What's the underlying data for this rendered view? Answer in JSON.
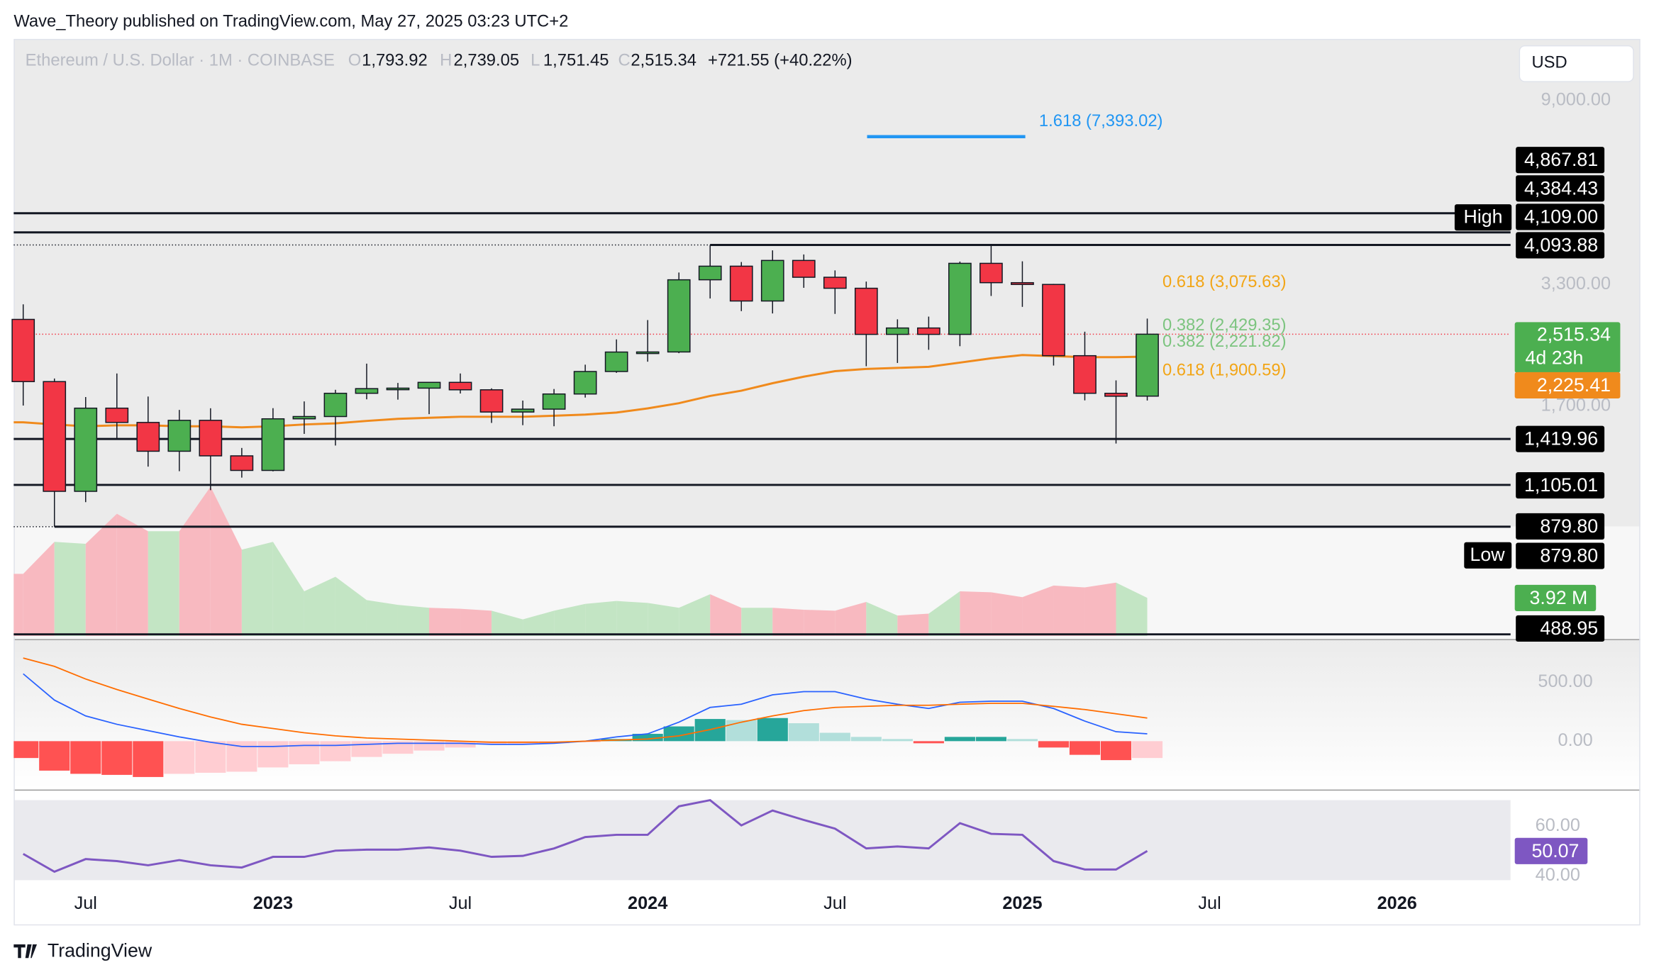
{
  "header": {
    "publisher": "Wave_Theory published on TradingView.com, May 27, 2025 03:23 UTC+2",
    "symbol": "Ethereum / U.S. Dollar · 1M · COINBASE",
    "o_key": "O",
    "open": "1,793.92",
    "h_key": "H",
    "high": "2,739.05",
    "l_key": "L",
    "low": "1,751.45",
    "c_key": "C",
    "close": "2,515.34",
    "change": "+721.55 (+40.22%)",
    "currency": "USD"
  },
  "footer": {
    "brand": "TradingView"
  },
  "chart_data": [
    {
      "type": "candlestick",
      "log_scale": true,
      "ylim": [
        482,
        12600
      ],
      "yticks": [
        {
          "value": 9000,
          "label": "9,000.00"
        },
        {
          "value": 3300,
          "label": "3,300.00"
        },
        {
          "value": 1700,
          "label": "1,700.00"
        }
      ],
      "xlim": [
        "2022-05",
        "2026-04"
      ],
      "xticks": [
        {
          "value": "2022-07",
          "label": "Jul"
        },
        {
          "value": "2023-01",
          "label": "2023"
        },
        {
          "value": "2023-07",
          "label": "Jul"
        },
        {
          "value": "2024-01",
          "label": "2024"
        },
        {
          "value": "2024-07",
          "label": "Jul"
        },
        {
          "value": "2025-01",
          "label": "2025"
        },
        {
          "value": "2025-07",
          "label": "Jul"
        },
        {
          "value": "2026-01",
          "label": "2026"
        }
      ],
      "x": [
        "2022-05",
        "2022-06",
        "2022-07",
        "2022-08",
        "2022-09",
        "2022-10",
        "2022-11",
        "2022-12",
        "2023-01",
        "2023-02",
        "2023-03",
        "2023-04",
        "2023-05",
        "2023-06",
        "2023-07",
        "2023-08",
        "2023-09",
        "2023-10",
        "2023-11",
        "2023-12",
        "2024-01",
        "2024-02",
        "2024-03",
        "2024-04",
        "2024-05",
        "2024-06",
        "2024-07",
        "2024-08",
        "2024-09",
        "2024-10",
        "2024-11",
        "2024-12",
        "2025-01",
        "2025-02",
        "2025-03",
        "2025-04",
        "2025-05"
      ],
      "open": [
        2727,
        1942,
        1067,
        1680,
        1554,
        1328,
        1572,
        1295,
        1196,
        1585,
        1605,
        1822,
        1869,
        1874,
        1934,
        1857,
        1645,
        1671,
        1815,
        2052,
        2282,
        2283,
        3385,
        3646,
        3015,
        3762,
        3432,
        3232,
        2513,
        2602,
        2513,
        3703,
        3332,
        3300,
        2237,
        1822,
        1793.92
      ],
      "high": [
        2960,
        1975,
        1785,
        2030,
        1790,
        1664,
        1679,
        1352,
        1680,
        1743,
        1857,
        2142,
        1928,
        1930,
        2030,
        1872,
        1751,
        1865,
        2130,
        2445,
        2717,
        3522,
        4093.88,
        3730,
        3975,
        3887,
        3563,
        3352,
        2728,
        2769,
        3739,
        4109,
        3744,
        3310,
        2550,
        1955,
        2739.05
      ],
      "low": [
        1704,
        879.8,
        1006,
        1422,
        1221,
        1191,
        1074,
        1150,
        1190,
        1460,
        1370,
        1763,
        1760,
        1626,
        1820,
        1550,
        1531,
        1522,
        1780,
        2037,
        2165,
        2268,
        3057,
        2853,
        2817,
        3240,
        2810,
        2112,
        2150,
        2310,
        2356,
        3099,
        2920,
        2120,
        1753,
        1385,
        1751.45
      ],
      "close": [
        1942,
        1067,
        1680,
        1554,
        1328,
        1572,
        1295,
        1196,
        1585,
        1605,
        1822,
        1869,
        1874,
        1934,
        1857,
        1645,
        1671,
        1815,
        2052,
        2282,
        2283,
        3385,
        3646,
        3015,
        3762,
        3432,
        3232,
        2513,
        2602,
        2513,
        3703,
        3332,
        3300,
        2237,
        1822,
        1793,
        2515.34
      ],
      "up_color": "#4caf50",
      "down_color": "#f23645",
      "ema": {
        "color": "#f08a1c",
        "values": [
          1555,
          1537,
          1522,
          1530,
          1530,
          1522,
          1522,
          1513,
          1522,
          1537,
          1546,
          1567,
          1585,
          1594,
          1603,
          1603,
          1603,
          1612,
          1622,
          1640,
          1678,
          1726,
          1796,
          1848,
          1925,
          1995,
          2056,
          2081,
          2093,
          2105,
          2154,
          2205,
          2245,
          2232,
          2219,
          2219,
          2225.41
        ],
        "last_value_label": "2,225.41"
      },
      "last_price": {
        "value": 2515.34,
        "label": "2,515.34",
        "countdown": "4d 23h",
        "color": "#4caf50"
      },
      "levels": [
        {
          "value": 4867.81,
          "label": "4,867.81"
        },
        {
          "value": 4384.43,
          "label": "4,384.43"
        },
        {
          "value": 4093.88,
          "label": "4,093.88"
        },
        {
          "value": 1419.96,
          "label": "1,419.96"
        },
        {
          "value": 1105.01,
          "label": "1,105.01"
        },
        {
          "value": 879.8,
          "label": "879.80"
        },
        {
          "value": 488.95,
          "label": "488.95"
        }
      ],
      "high_marker": {
        "label": "High",
        "value": 4109,
        "value_label": "4,109.00"
      },
      "low_marker": {
        "label": "Low",
        "value": 879.8,
        "value_label": "879.80"
      },
      "annotations": [
        {
          "label": "1.618 (7,393.02)",
          "value": 7393.02,
          "color": "#2196f3"
        },
        {
          "label": "0.618 (3,075.63)",
          "value": 3075.63,
          "color": "#f2a516"
        },
        {
          "label": "0.382 (2,429.35)",
          "value": 2429.35,
          "color": "#7cc47f"
        },
        {
          "label": "0.382 (2,221.82)",
          "value": 2221.82,
          "color": "#7cc47f"
        },
        {
          "label": "0.618 (1,900.59)",
          "value": 1900.59,
          "color": "#f2a516"
        }
      ]
    },
    {
      "type": "area",
      "ylim": [
        0,
        61.6
      ],
      "up_color": "#c3e5c4",
      "down_color": "#f8b9c0",
      "values": [
        6.4,
        9.7,
        9.5,
        12.6,
        10.8,
        10.8,
        15.4,
        8.9,
        9.7,
        4.6,
        6.1,
        3.7,
        3.2,
        2.9,
        2.8,
        2.6,
        1.7,
        2.6,
        3.3,
        3.6,
        3.4,
        2.9,
        4.3,
        2.9,
        2.9,
        2.7,
        2.6,
        3.5,
        2.1,
        2.3,
        4.6,
        4.5,
        4.0,
        5.2,
        5.0,
        5.5,
        3.92
      ],
      "last_value_label": "3.92 M",
      "label_color": "#4caf50"
    },
    {
      "type": "macd",
      "ylim": [
        -393,
        839
      ],
      "yticks": [
        {
          "value": 500,
          "label": "500.00"
        },
        {
          "value": 0,
          "label": "0.00"
        }
      ],
      "macd_color": "#2962ff",
      "signal_color": "#ff6d00",
      "hist_colors": {
        "up_grow": "#26a69a",
        "up_fall": "#b2dfdb",
        "down_fall": "#ff5252",
        "down_rise": "#ffcdd2"
      },
      "macd": [
        571,
        348,
        214,
        143,
        89,
        36,
        -9,
        -45,
        -45,
        -36,
        -36,
        -27,
        -18,
        -18,
        -18,
        -27,
        -27,
        -18,
        0,
        36,
        62,
        161,
        286,
        313,
        393,
        420,
        420,
        357,
        313,
        277,
        330,
        339,
        339,
        277,
        170,
        80,
        62
      ],
      "signal": [
        705,
        634,
        527,
        438,
        357,
        277,
        205,
        143,
        107,
        71,
        45,
        27,
        18,
        9,
        0,
        -9,
        -9,
        -9,
        0,
        9,
        18,
        45,
        98,
        161,
        214,
        259,
        286,
        295,
        304,
        304,
        313,
        321,
        321,
        295,
        268,
        232,
        196
      ],
      "histogram": [
        -143,
        -250,
        -277,
        -286,
        -304,
        -277,
        -268,
        -259,
        -223,
        -196,
        -170,
        -134,
        -107,
        -80,
        -54,
        -27,
        -27,
        -18,
        -9,
        18,
        62,
        125,
        188,
        179,
        196,
        152,
        71,
        36,
        18,
        -18,
        36,
        36,
        18,
        -54,
        -116,
        -161,
        -143
      ]
    },
    {
      "type": "line",
      "ylim": [
        36.6,
        74.0
      ],
      "yticks": [
        {
          "value": 60,
          "label": "60.00"
        },
        {
          "value": 40,
          "label": "40.00"
        }
      ],
      "color": "#7e57c2",
      "values": [
        48.9,
        41.7,
        46.8,
        46.0,
        44.3,
        46.4,
        44.3,
        43.4,
        47.7,
        47.7,
        50.2,
        50.6,
        50.6,
        51.5,
        50.2,
        47.7,
        48.1,
        51.1,
        55.7,
        56.6,
        56.6,
        68.1,
        70.6,
        60.4,
        66.4,
        62.6,
        59.1,
        51.1,
        51.9,
        51.1,
        61.3,
        57.0,
        56.6,
        46.0,
        42.6,
        42.6,
        50.07
      ],
      "last_value_label": "50.07"
    }
  ]
}
